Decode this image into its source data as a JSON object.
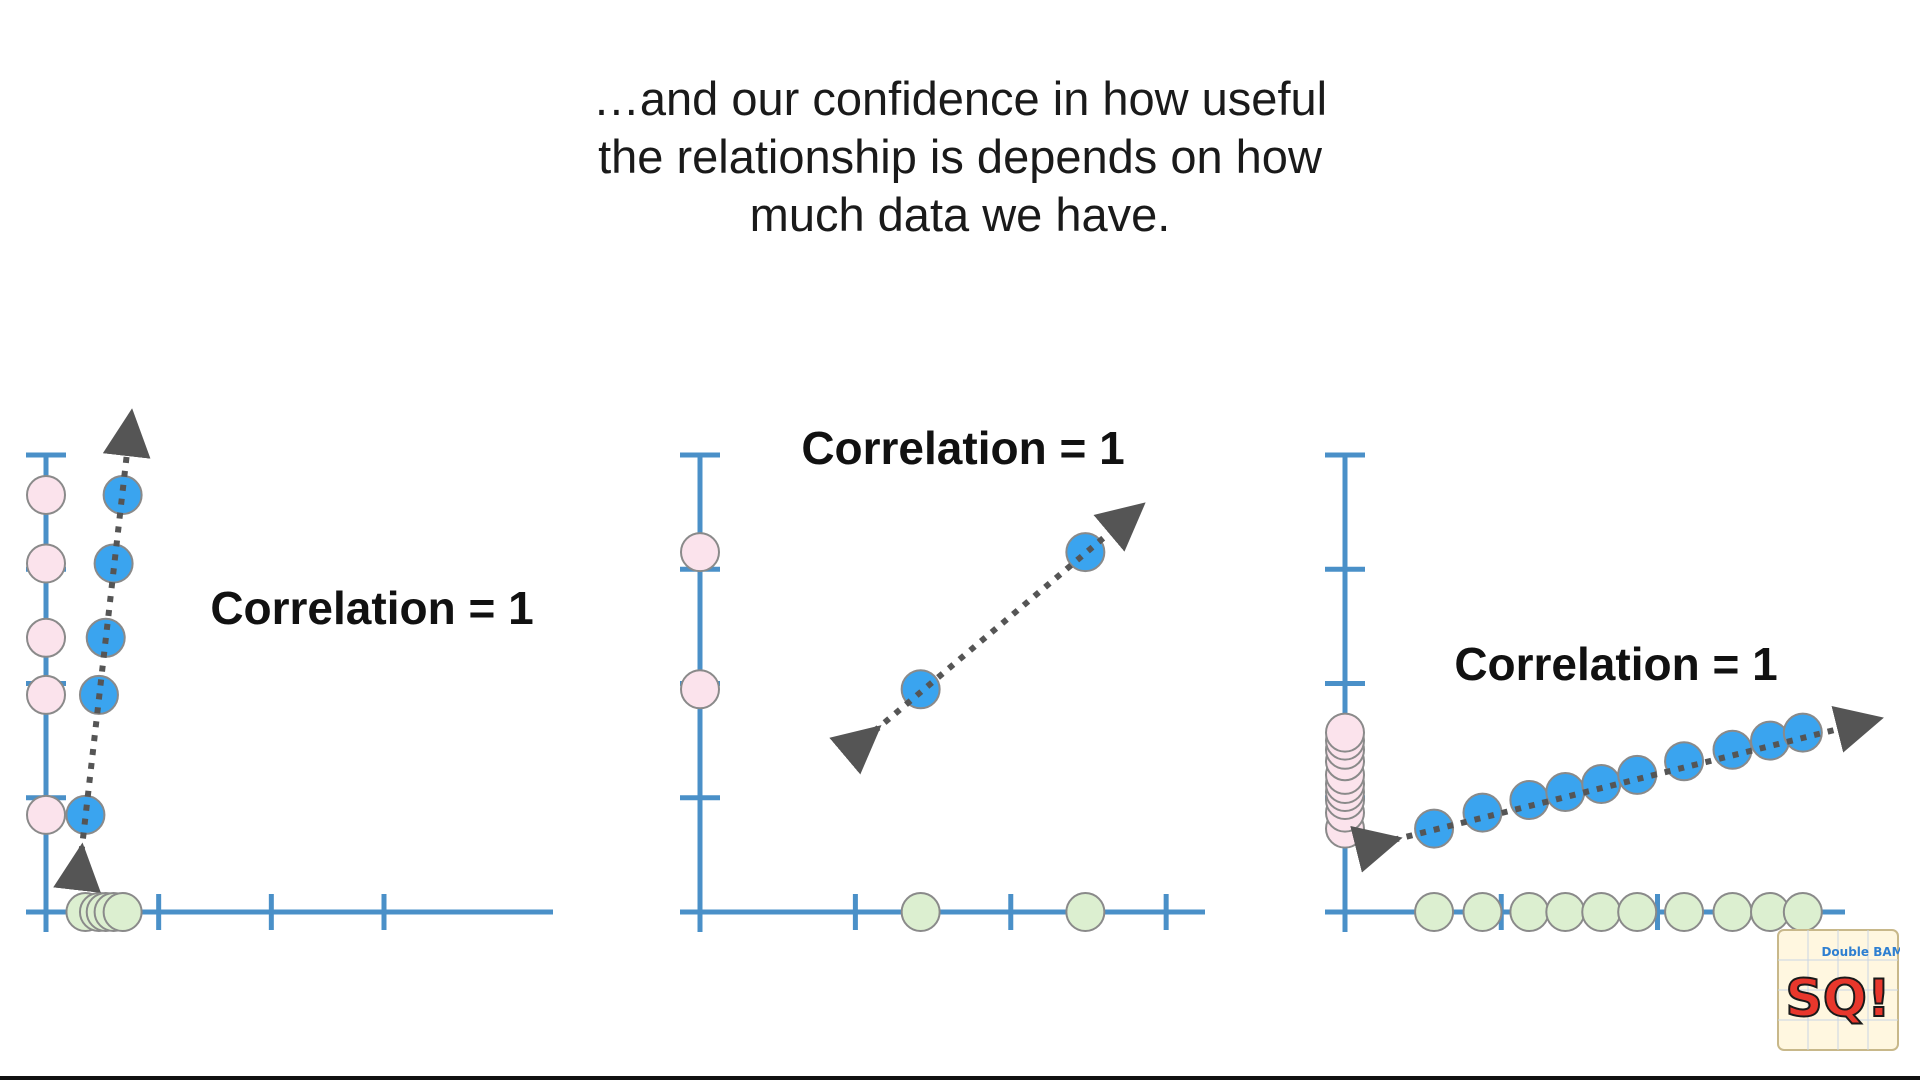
{
  "caption": {
    "lines": [
      "…and our confidence in how useful",
      "the relationship is depends on how",
      "much data we have."
    ]
  },
  "colors": {
    "axis": "#4a90c8",
    "point_blue": "#3aa4ef",
    "point_pink": "#fbe3ec",
    "point_green": "#dcefd0",
    "point_outline": "#8a8a8a",
    "trend_line": "#555555",
    "label": "#111111"
  },
  "chart_data": [
    {
      "type": "scatter",
      "title": "Correlation = 1",
      "xlabel": "",
      "ylabel": "",
      "xlim": [
        0,
        4.5
      ],
      "ylim": [
        0,
        4
      ],
      "x_ticks": [
        1,
        2,
        3
      ],
      "y_ticks": [
        1,
        2,
        3,
        4
      ],
      "points": [
        {
          "x": 0.35,
          "y": 0.85
        },
        {
          "x": 0.47,
          "y": 1.9
        },
        {
          "x": 0.53,
          "y": 2.4
        },
        {
          "x": 0.6,
          "y": 3.05
        },
        {
          "x": 0.68,
          "y": 3.65
        }
      ],
      "trend": {
        "x1": 0.3,
        "y1": 0.4,
        "x2": 0.74,
        "y2": 4.2
      }
    },
    {
      "type": "scatter",
      "title": "Correlation = 1",
      "xlabel": "",
      "ylabel": "",
      "xlim": [
        0,
        3.25
      ],
      "ylim": [
        0,
        4
      ],
      "x_ticks": [
        1,
        2,
        3
      ],
      "y_ticks": [
        1,
        2,
        3,
        4
      ],
      "points": [
        {
          "x": 1.42,
          "y": 1.95
        },
        {
          "x": 2.48,
          "y": 3.15
        }
      ],
      "trend": {
        "x1": 1.05,
        "y1": 1.5,
        "x2": 2.75,
        "y2": 3.45
      }
    },
    {
      "type": "scatter",
      "title": "Correlation = 1",
      "xlabel": "",
      "ylabel": "",
      "xlim": [
        0,
        3.2
      ],
      "ylim": [
        0,
        4
      ],
      "x_ticks": [
        1,
        2
      ],
      "y_ticks": [
        1,
        2,
        3,
        4
      ],
      "points": [
        {
          "x": 0.57,
          "y": 0.73
        },
        {
          "x": 0.88,
          "y": 0.87
        },
        {
          "x": 1.18,
          "y": 0.98
        },
        {
          "x": 1.41,
          "y": 1.05
        },
        {
          "x": 1.64,
          "y": 1.12
        },
        {
          "x": 1.87,
          "y": 1.2
        },
        {
          "x": 2.17,
          "y": 1.32
        },
        {
          "x": 2.48,
          "y": 1.42
        },
        {
          "x": 2.72,
          "y": 1.5
        },
        {
          "x": 2.93,
          "y": 1.57
        }
      ],
      "trend": {
        "x1": 0.22,
        "y1": 0.6,
        "x2": 3.3,
        "y2": 1.65
      }
    }
  ],
  "logo": {
    "text_main": "SQ!",
    "text_badge": "Double BAM!!"
  }
}
